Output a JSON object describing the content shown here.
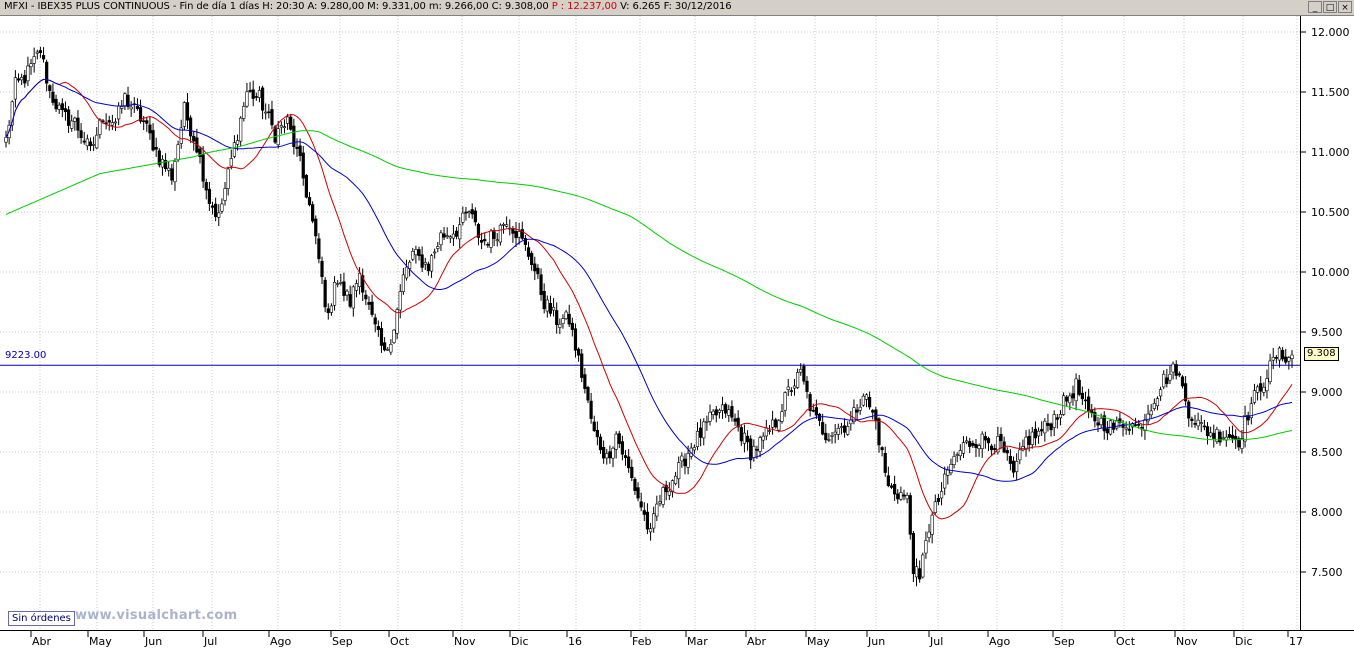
{
  "window": {
    "title_black": "MFXI - IBEX35 PLUS CONTINUOUS - Fin de día 1 días  H: 20:30  A: 9.280,00  M: 9.331,00  m: 9.266,00  C: 9.308,00",
    "title_red": "P : 12.237,00",
    "title_tail": "V: 6.265  F: 30/12/2016",
    "controls": [
      "_",
      "□",
      "×"
    ]
  },
  "status": {
    "orders_label": "Sin órdenes",
    "watermark": "www.visualchart.com"
  },
  "hline": {
    "label": "9223.00",
    "value": 9223,
    "color": "#0000cc"
  },
  "last_price_label": "9.308",
  "chart_data": {
    "type": "line",
    "title": "MFXI - IBEX35 PLUS CONTINUOUS",
    "style": "candlestick",
    "ylim": [
      7150,
      12250
    ],
    "yticks": [
      7500,
      8000,
      8500,
      9000,
      9500,
      10000,
      10500,
      11000,
      11500,
      12000
    ],
    "ytick_labels": [
      "7.500",
      "8.000",
      "8.500",
      "9.000",
      "9.500",
      "10.000",
      "10.500",
      "11.000",
      "11.500",
      "12.000"
    ],
    "grid": true,
    "x_labels": [
      "Abr",
      "May",
      "Jun",
      "Jul",
      "Ago",
      "Sep",
      "Oct",
      "Nov",
      "Dic",
      "16",
      "Feb",
      "Mar",
      "Abr",
      "May",
      "Jun",
      "Jul",
      "Ago",
      "Sep",
      "Oct",
      "Nov",
      "Dic",
      "17"
    ],
    "price_close_series": {
      "name": "",
      "x_range": [
        "2015-03-25",
        "2016-12-30"
      ],
      "anchors": [
        [
          0,
          11100
        ],
        [
          3,
          11550
        ],
        [
          6,
          11620
        ],
        [
          9,
          11750
        ],
        [
          11,
          11850
        ],
        [
          14,
          11500
        ],
        [
          18,
          11300
        ],
        [
          22,
          11250
        ],
        [
          27,
          11000
        ],
        [
          31,
          11300
        ],
        [
          35,
          11250
        ],
        [
          38,
          11450
        ],
        [
          44,
          11250
        ],
        [
          49,
          10950
        ],
        [
          53,
          10800
        ],
        [
          57,
          11350
        ],
        [
          61,
          11050
        ],
        [
          65,
          10600
        ],
        [
          68,
          10450
        ],
        [
          73,
          11050
        ],
        [
          77,
          11500
        ],
        [
          81,
          11450
        ],
        [
          86,
          11150
        ],
        [
          90,
          11250
        ],
        [
          94,
          10900
        ],
        [
          97,
          10550
        ],
        [
          100,
          10100
        ],
        [
          103,
          9600
        ],
        [
          105,
          9950
        ],
        [
          110,
          9750
        ],
        [
          113,
          10000
        ],
        [
          117,
          9600
        ],
        [
          121,
          9300
        ],
        [
          124,
          9550
        ],
        [
          127,
          9950
        ],
        [
          130,
          10150
        ],
        [
          135,
          10050
        ],
        [
          139,
          10300
        ],
        [
          144,
          10350
        ],
        [
          148,
          10500
        ],
        [
          152,
          10250
        ],
        [
          156,
          10300
        ],
        [
          160,
          10450
        ],
        [
          164,
          10300
        ],
        [
          168,
          10100
        ],
        [
          172,
          9750
        ],
        [
          176,
          9600
        ],
        [
          180,
          9600
        ],
        [
          184,
          9150
        ],
        [
          188,
          8650
        ],
        [
          192,
          8450
        ],
        [
          195,
          8650
        ],
        [
          199,
          8350
        ],
        [
          203,
          8050
        ],
        [
          206,
          7800
        ],
        [
          208,
          8050
        ],
        [
          211,
          8200
        ],
        [
          215,
          8350
        ],
        [
          219,
          8550
        ],
        [
          222,
          8650
        ],
        [
          226,
          8800
        ],
        [
          230,
          8850
        ],
        [
          234,
          8700
        ],
        [
          238,
          8500
        ],
        [
          242,
          8600
        ],
        [
          246,
          8750
        ],
        [
          250,
          9000
        ],
        [
          254,
          9150
        ],
        [
          258,
          8800
        ],
        [
          262,
          8650
        ],
        [
          266,
          8700
        ],
        [
          270,
          8750
        ],
        [
          274,
          9000
        ],
        [
          278,
          8750
        ],
        [
          282,
          8200
        ],
        [
          286,
          8150
        ],
        [
          288,
          8100
        ],
        [
          290,
          7550
        ],
        [
          292,
          7400
        ],
        [
          294,
          7800
        ],
        [
          298,
          8100
        ],
        [
          302,
          8400
        ],
        [
          306,
          8550
        ],
        [
          310,
          8600
        ],
        [
          314,
          8600
        ],
        [
          318,
          8550
        ],
        [
          322,
          8300
        ],
        [
          326,
          8600
        ],
        [
          330,
          8650
        ],
        [
          334,
          8750
        ],
        [
          338,
          8900
        ],
        [
          342,
          9050
        ],
        [
          346,
          8800
        ],
        [
          350,
          8750
        ],
        [
          354,
          8700
        ],
        [
          358,
          8750
        ],
        [
          362,
          8700
        ],
        [
          366,
          8900
        ],
        [
          370,
          9100
        ],
        [
          374,
          9200
        ],
        [
          378,
          8850
        ],
        [
          382,
          8700
        ],
        [
          386,
          8650
        ],
        [
          390,
          8650
        ],
        [
          394,
          8600
        ],
        [
          398,
          8900
        ],
        [
          402,
          9100
        ],
        [
          406,
          9300
        ],
        [
          411,
          9308
        ]
      ]
    },
    "moving_averages": [
      {
        "name": "",
        "color": "#d00000",
        "period": 18
      },
      {
        "name": "",
        "color": "#0000cc",
        "period": 40
      },
      {
        "name": "",
        "color": "#00cc00",
        "period": 200
      }
    ],
    "ma_long_seed": [
      [
        0,
        10480
      ],
      [
        30,
        10820
      ],
      [
        60,
        10960
      ]
    ]
  }
}
